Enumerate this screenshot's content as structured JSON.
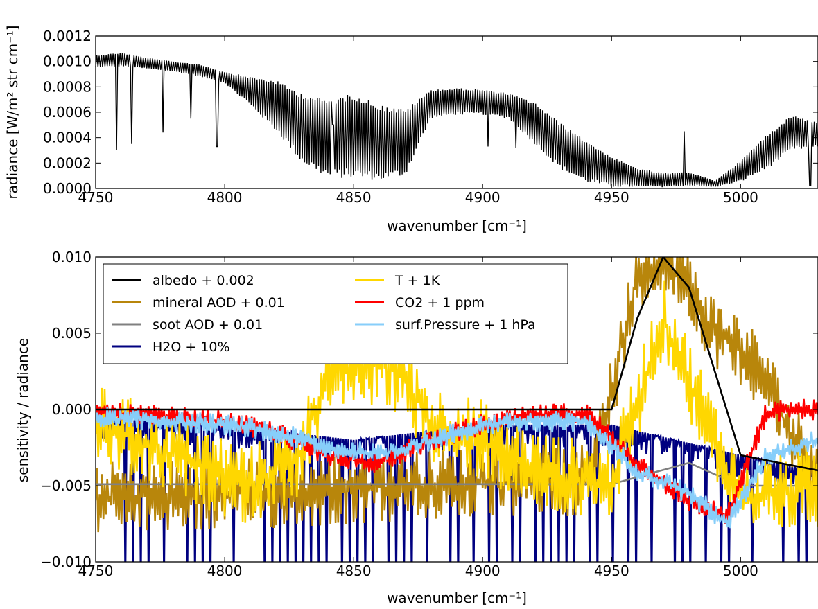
{
  "chart_data": [
    {
      "type": "line",
      "xlabel": "wavenumber [cm⁻¹]",
      "ylabel": "radiance [W/m² str cm⁻¹]",
      "xlim": [
        4750,
        5030
      ],
      "ylim": [
        0,
        0.0012
      ],
      "x_ticks": [
        4750,
        4800,
        4850,
        4900,
        4950,
        5000
      ],
      "x_tick_labels": [
        "4750",
        "4800",
        "4850",
        "4900",
        "4950",
        "5000"
      ],
      "y_ticks": [
        0,
        0.0002,
        0.0004,
        0.0006,
        0.0008,
        0.001,
        0.0012
      ],
      "y_tick_labels": [
        "0.0000",
        "0.0002",
        "0.0004",
        "0.0006",
        "0.0008",
        "0.0010",
        "0.0012"
      ],
      "grid": false,
      "series": [
        {
          "color": "#000000",
          "envelope_x": [
            4750,
            4760,
            4770,
            4780,
            4790,
            4800,
            4810,
            4820,
            4830,
            4840,
            4850,
            4860,
            4870,
            4880,
            4890,
            4900,
            4910,
            4920,
            4930,
            4940,
            4950,
            4960,
            4970,
            4980,
            4990,
            5000,
            5010,
            5020,
            5030
          ],
          "envelope_top": [
            0.00105,
            0.00107,
            0.00103,
            0.001,
            0.00098,
            0.00092,
            0.00088,
            0.00085,
            0.00075,
            0.0007,
            0.00075,
            0.00066,
            0.00062,
            0.00078,
            0.00079,
            0.00078,
            0.00075,
            0.00068,
            0.00052,
            0.00038,
            0.00025,
            0.00016,
            0.00012,
            0.00013,
            6e-05,
            0.00022,
            0.00042,
            0.00058,
            0.00052
          ],
          "envelope_bottom": [
            0.00095,
            0.00096,
            0.00094,
            0.00092,
            0.00088,
            0.00083,
            0.00065,
            0.00045,
            0.0002,
            8e-05,
            8e-05,
            6e-05,
            0.0001,
            0.00055,
            0.00058,
            0.00058,
            0.00055,
            0.00035,
            0.00015,
            5e-05,
            1e-05,
            1e-05,
            1e-05,
            2e-05,
            1e-05,
            5e-05,
            0.00015,
            0.0003,
            0.00032
          ],
          "absorption_lines": [
            [
              4758,
              0.0003
            ],
            [
              4764,
              0.00035
            ],
            [
              4776,
              0.00044
            ],
            [
              4787,
              0.00055
            ],
            [
              4797,
              0.00033
            ],
            [
              4842,
              0.0005
            ],
            [
              4902,
              0.00033
            ],
            [
              4913,
              0.00032
            ],
            [
              4978,
              0.00045
            ],
            [
              5027,
              2e-05
            ]
          ]
        }
      ]
    },
    {
      "type": "line",
      "xlabel": "wavenumber [cm⁻¹]",
      "ylabel": "sensitivity / radiance",
      "xlim": [
        4750,
        5030
      ],
      "ylim": [
        -0.01,
        0.01
      ],
      "x_ticks": [
        4750,
        4800,
        4850,
        4900,
        4950,
        5000
      ],
      "x_tick_labels": [
        "4750",
        "4800",
        "4850",
        "4900",
        "4950",
        "5000"
      ],
      "y_ticks": [
        -0.01,
        -0.005,
        0,
        0.005,
        0.01
      ],
      "y_tick_labels": [
        "−0.010",
        "−0.005",
        "0.000",
        "0.005",
        "0.010"
      ],
      "grid": false,
      "legend_position": "top-left",
      "series": [
        {
          "name": "albedo + 0.002",
          "color": "#000000",
          "x": [
            4750,
            4800,
            4850,
            4900,
            4950,
            4960,
            4970,
            4980,
            5000,
            5030
          ],
          "y": [
            0.0,
            0.0,
            0.0,
            0.0,
            0.0,
            0.006,
            0.01,
            0.008,
            -0.003,
            -0.004
          ]
        },
        {
          "name": "mineral AOD + 0.01",
          "color": "#b8860b",
          "x": [
            4750,
            4800,
            4850,
            4900,
            4940,
            4950,
            4960,
            4970,
            4980,
            4990,
            5000,
            5010,
            5020,
            5030
          ],
          "y": [
            -0.0058,
            -0.0056,
            -0.0052,
            -0.0048,
            -0.0046,
            0.001,
            0.009,
            0.01,
            0.008,
            0.005,
            0.004,
            0.002,
            -0.002,
            -0.0036
          ],
          "noise_amplitude": 0.004
        },
        {
          "name": "soot AOD + 0.01",
          "color": "#808080",
          "x": [
            4750,
            4800,
            4850,
            4900,
            4950,
            4980,
            5000,
            5030
          ],
          "y": [
            -0.0049,
            -0.0049,
            -0.0049,
            -0.0049,
            -0.0049,
            -0.0035,
            -0.005,
            -0.005
          ]
        },
        {
          "name": "H2O + 10%",
          "color": "#000080",
          "x": [
            4750,
            4800,
            4850,
            4900,
            4950,
            5000,
            5030
          ],
          "y": [
            -0.0005,
            -0.001,
            -0.002,
            -0.001,
            -0.001,
            -0.003,
            -0.004
          ],
          "dip_depth": 0.0095
        },
        {
          "name": "T + 1K",
          "color": "#ffd700",
          "x": [
            4750,
            4780,
            4810,
            4830,
            4840,
            4850,
            4860,
            4870,
            4880,
            4900,
            4920,
            4950,
            4970,
            5000,
            5030
          ],
          "y": [
            -0.001,
            -0.003,
            -0.005,
            -0.003,
            0.0028,
            0.0025,
            0.003,
            0.002,
            -0.001,
            -0.002,
            -0.004,
            -0.005,
            0.006,
            -0.006,
            -0.005
          ],
          "noise_amplitude": 0.0045
        },
        {
          "name": "CO2 + 1 ppm",
          "color": "#ff0000",
          "x": [
            4750,
            4780,
            4800,
            4820,
            4840,
            4860,
            4880,
            4900,
            4920,
            4940,
            4960,
            4980,
            4995,
            5010,
            5020,
            5030
          ],
          "y": [
            -0.0002,
            -0.0005,
            -0.0008,
            -0.0015,
            -0.003,
            -0.0035,
            -0.002,
            -0.001,
            -0.0004,
            -0.0002,
            -0.0035,
            -0.006,
            -0.007,
            -0.0002,
            0.0,
            0.0
          ],
          "noise_amplitude": 0.0012
        },
        {
          "name": "surf.Pressure + 1 hPa",
          "color": "#87cefa",
          "x": [
            4750,
            4780,
            4800,
            4820,
            4840,
            4860,
            4880,
            4900,
            4920,
            4940,
            4960,
            4980,
            4995,
            5010,
            5020,
            5030
          ],
          "y": [
            -0.0005,
            -0.0008,
            -0.001,
            -0.0015,
            -0.0025,
            -0.003,
            -0.002,
            -0.001,
            -0.0008,
            -0.0008,
            -0.004,
            -0.0055,
            -0.0075,
            -0.003,
            -0.0025,
            -0.002
          ],
          "noise_amplitude": 0.0012
        }
      ]
    }
  ]
}
